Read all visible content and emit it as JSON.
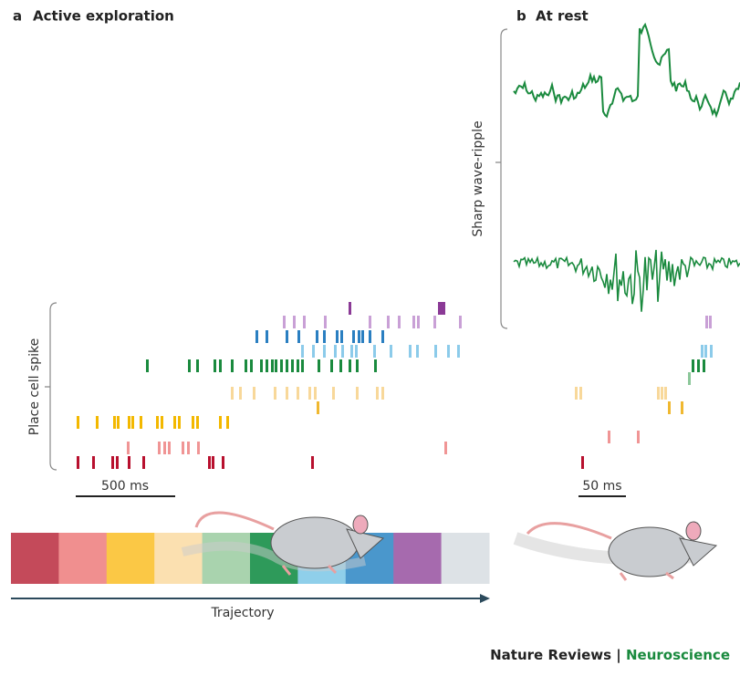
{
  "panel_a": {
    "letter": "a",
    "title": "Active exploration",
    "y_label": "Place cell spike",
    "scale_bar": "500 ms",
    "trajectory_label": "Trajectory"
  },
  "panel_b": {
    "letter": "b",
    "title": "At rest",
    "y_label": "Sharp wave-ripple",
    "scale_bar": "50 ms"
  },
  "footer": {
    "journal": "Nature Reviews",
    "separator": "|",
    "section": "Neuroscience"
  }
}
